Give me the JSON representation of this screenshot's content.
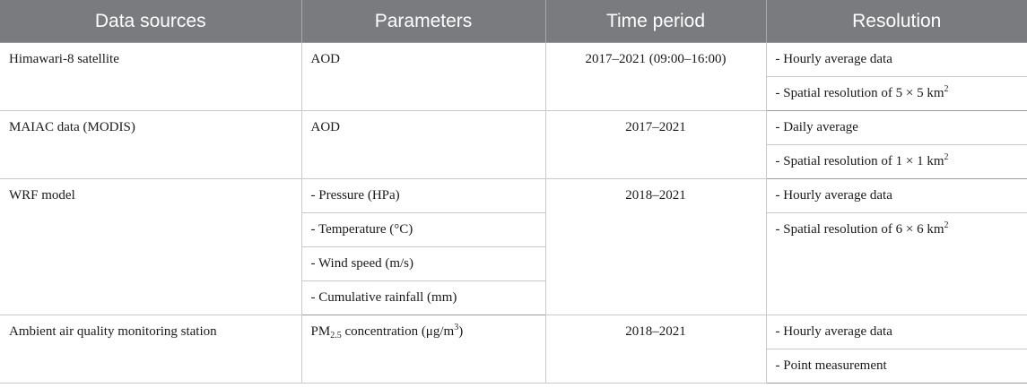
{
  "headers": [
    "Data sources",
    "Parameters",
    "Time period",
    "Resolution"
  ],
  "rows": {
    "himawari": {
      "source": "Himawari-8 satellite",
      "parameter": "AOD",
      "period": "2017–2021 (09:00–16:00)",
      "res1": "- Hourly average data",
      "res2_prefix": "- Spatial resolution of 5 × 5 km",
      "res2_sup": "2"
    },
    "maiac": {
      "source": "MAIAC data (MODIS)",
      "parameter": "AOD",
      "period": "2017–2021",
      "res1": "- Daily average",
      "res2_prefix": "- Spatial resolution of 1 × 1 km",
      "res2_sup": "2"
    },
    "wrf": {
      "source": "WRF model",
      "params": [
        "- Pressure (HPa)",
        "- Temperature (°C)",
        "- Wind speed (m/s)",
        "- Cumulative rainfall (mm)"
      ],
      "period": "2018–2021",
      "res1": "- Hourly average data",
      "res2_prefix": "- Spatial resolution of 6 × 6 km",
      "res2_sup": "2"
    },
    "station": {
      "source": "Ambient air quality monitoring station",
      "param_prefix": "PM",
      "param_sub": "2.5",
      "param_mid": " concentration (μg/m",
      "param_sup": "3",
      "param_suffix": ")",
      "period": "2018–2021",
      "res1": "- Hourly average data",
      "res2": "- Point measurement"
    }
  }
}
